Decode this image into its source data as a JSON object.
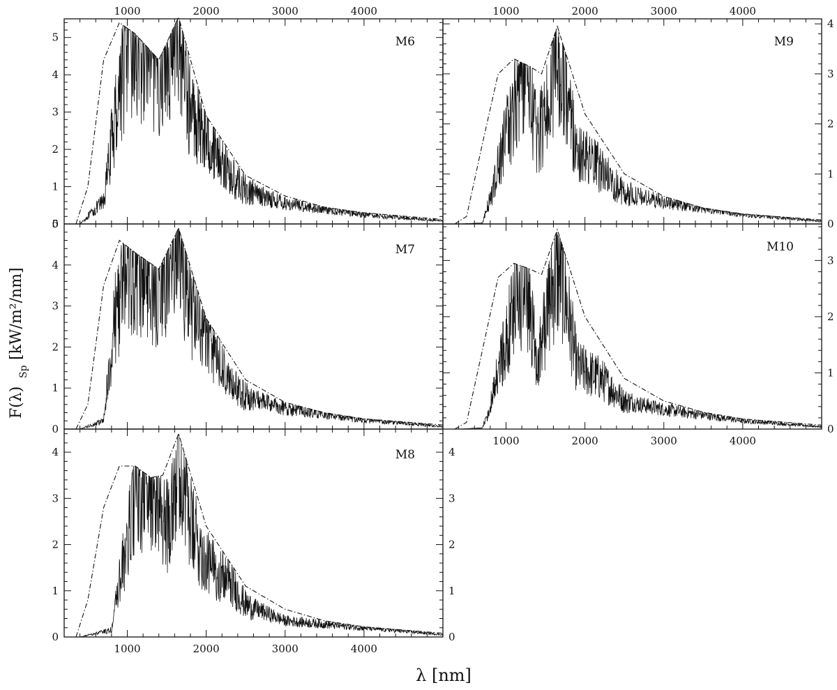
{
  "figure": {
    "ylabel": "F(λ)",
    "ylabel_sub": "Sp",
    "ylabel_units": "[kW/m²/nm]",
    "xlabel": "λ [nm]"
  },
  "chart_data": [
    {
      "type": "line",
      "panel": "M6",
      "xlim": [
        200,
        5000
      ],
      "ylim": [
        0,
        5.5
      ],
      "x_ticks": [
        1000,
        2000,
        3000,
        4000
      ],
      "y_ticks": [
        0,
        1,
        2,
        3,
        4,
        5
      ],
      "grid": false,
      "envelope": {
        "x": [
          350,
          500,
          700,
          900,
          1100,
          1400,
          1650,
          2000,
          2500,
          3000,
          3500,
          4000,
          5000
        ],
        "y": [
          0.0,
          1.0,
          4.4,
          5.4,
          5.1,
          4.4,
          5.55,
          2.9,
          1.3,
          0.75,
          0.45,
          0.3,
          0.12
        ]
      },
      "spectrum": {
        "x": [
          400,
          700,
          900,
          1000,
          1200,
          1400,
          1650,
          1800,
          2000,
          2300,
          2500,
          3000,
          4000,
          5000
        ],
        "y": [
          0.0,
          0.6,
          3.7,
          4.9,
          4.8,
          4.2,
          5.4,
          3.0,
          2.5,
          1.3,
          0.9,
          0.55,
          0.25,
          0.08
        ]
      }
    },
    {
      "type": "line",
      "panel": "M7",
      "xlim": [
        200,
        5000
      ],
      "ylim": [
        0,
        5.0
      ],
      "x_ticks": [
        1000,
        2000,
        3000,
        4000
      ],
      "y_ticks": [
        0,
        1,
        2,
        3,
        4,
        5
      ],
      "grid": false,
      "envelope": {
        "x": [
          350,
          500,
          700,
          900,
          1100,
          1400,
          1650,
          2000,
          2500,
          3000,
          3500,
          4000,
          5000
        ],
        "y": [
          0.0,
          0.6,
          3.5,
          4.6,
          4.3,
          3.9,
          4.9,
          2.7,
          1.2,
          0.65,
          0.4,
          0.25,
          0.1
        ]
      },
      "spectrum": {
        "x": [
          400,
          700,
          850,
          1000,
          1200,
          1400,
          1650,
          1800,
          2000,
          2300,
          2500,
          3000,
          4000,
          5000
        ],
        "y": [
          0.0,
          0.2,
          2.8,
          3.9,
          4.0,
          3.5,
          4.6,
          3.0,
          2.3,
          1.1,
          0.8,
          0.5,
          0.22,
          0.06
        ]
      }
    },
    {
      "type": "line",
      "panel": "M8",
      "xlim": [
        200,
        5000
      ],
      "ylim": [
        0,
        4.5
      ],
      "x_ticks": [
        1000,
        2000,
        3000,
        4000
      ],
      "y_ticks": [
        0,
        1,
        2,
        3,
        4
      ],
      "right_ticks": [
        0,
        1,
        2,
        3,
        4
      ],
      "grid": false,
      "envelope": {
        "x": [
          350,
          500,
          700,
          900,
          1100,
          1300,
          1450,
          1650,
          2000,
          2500,
          3000,
          3500,
          4000,
          5000
        ],
        "y": [
          0.0,
          0.8,
          2.8,
          3.7,
          3.7,
          3.45,
          3.5,
          4.4,
          2.4,
          1.1,
          0.6,
          0.35,
          0.22,
          0.08
        ]
      },
      "spectrum": {
        "x": [
          400,
          800,
          900,
          1000,
          1100,
          1300,
          1500,
          1650,
          1800,
          2000,
          2300,
          2500,
          3000,
          4000,
          5000
        ],
        "y": [
          0.0,
          0.15,
          1.2,
          2.0,
          3.0,
          3.3,
          2.4,
          4.1,
          2.4,
          1.6,
          1.2,
          0.7,
          0.35,
          0.2,
          0.05
        ]
      }
    },
    {
      "type": "line",
      "panel": "M9",
      "xlim": [
        200,
        5000
      ],
      "ylim": [
        0,
        4.1
      ],
      "x_ticks": [
        1000,
        2000,
        3000,
        4000
      ],
      "right_ticks": [
        0,
        1,
        2,
        3,
        4
      ],
      "grid": false,
      "envelope": {
        "x": [
          350,
          500,
          700,
          900,
          1100,
          1300,
          1450,
          1650,
          2000,
          2500,
          3000,
          3500,
          4000,
          5000
        ],
        "y": [
          0.0,
          0.15,
          1.6,
          3.0,
          3.3,
          3.15,
          3.0,
          3.95,
          2.2,
          1.0,
          0.55,
          0.32,
          0.2,
          0.08
        ]
      },
      "spectrum": {
        "x": [
          400,
          700,
          800,
          1000,
          1250,
          1400,
          1600,
          1700,
          1900,
          2200,
          2500,
          3000,
          4000,
          5000
        ],
        "y": [
          0.0,
          0.02,
          0.5,
          1.8,
          3.1,
          1.6,
          3.0,
          3.4,
          1.4,
          1.1,
          0.6,
          0.45,
          0.2,
          0.05
        ]
      }
    },
    {
      "type": "line",
      "panel": "M10",
      "xlim": [
        200,
        5000
      ],
      "ylim": [
        0,
        3.65
      ],
      "x_ticks": [
        1000,
        2000,
        3000,
        4000
      ],
      "right_ticks": [
        0,
        1,
        2,
        3
      ],
      "grid": false,
      "envelope": {
        "x": [
          350,
          500,
          700,
          900,
          1100,
          1300,
          1450,
          1650,
          2000,
          2500,
          3000,
          3500,
          4000,
          5000
        ],
        "y": [
          0.0,
          0.12,
          1.4,
          2.7,
          2.95,
          2.85,
          2.75,
          3.55,
          2.0,
          0.9,
          0.5,
          0.3,
          0.18,
          0.07
        ]
      },
      "spectrum": {
        "x": [
          400,
          700,
          800,
          1000,
          1250,
          1400,
          1600,
          1700,
          1900,
          2200,
          2500,
          3000,
          4000,
          5000
        ],
        "y": [
          0.0,
          0.02,
          0.4,
          1.6,
          2.7,
          1.2,
          2.6,
          2.8,
          1.1,
          0.9,
          0.5,
          0.35,
          0.15,
          0.04
        ]
      }
    }
  ]
}
